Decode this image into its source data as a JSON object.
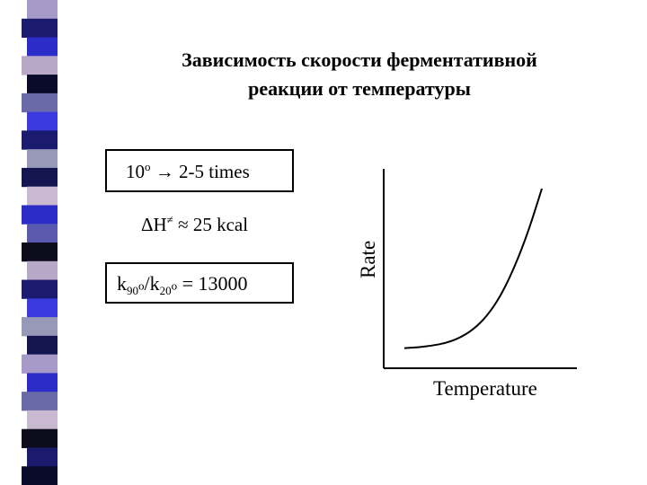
{
  "title": {
    "line1": "Зависимость скорости ферментативной",
    "line2": "реакции от температуры"
  },
  "facts": {
    "temp_step_base": "10",
    "temp_step_sup": "o",
    "arrow": "→",
    "temp_step_effect": "2-5 times",
    "enthalpy_symbol": "ΔH",
    "enthalpy_mark": "≠",
    "enthalpy_value": "≈ 25 kcal",
    "ratio_k1": "k",
    "ratio_k1_sub": "90",
    "ratio_k1_sup": "o",
    "ratio_slash": "/k",
    "ratio_k2_sub": "20",
    "ratio_k2_sup": "o",
    "ratio_value": " = 13000"
  },
  "chart_data": {
    "type": "line",
    "xlabel": "Temperature",
    "ylabel": "Rate",
    "x": [
      0,
      0.1,
      0.2,
      0.3,
      0.4,
      0.5,
      0.6,
      0.7,
      0.8,
      0.9,
      1.0
    ],
    "y": [
      0.05,
      0.055,
      0.065,
      0.08,
      0.11,
      0.16,
      0.24,
      0.36,
      0.53,
      0.74,
      1.0
    ],
    "xlim": [
      0,
      1
    ],
    "ylim": [
      0,
      1
    ],
    "grid": false
  },
  "colors": {
    "stripe": [
      "#a89ac8",
      "#1a1a6e",
      "#2c2cc8",
      "#b8a8c8",
      "#0a0a2a",
      "#6a6aa8",
      "#3a3ae0",
      "#9898b8",
      "#141450",
      "#c8b8d0",
      "#5a5ab0",
      "#0c0c1c"
    ]
  }
}
